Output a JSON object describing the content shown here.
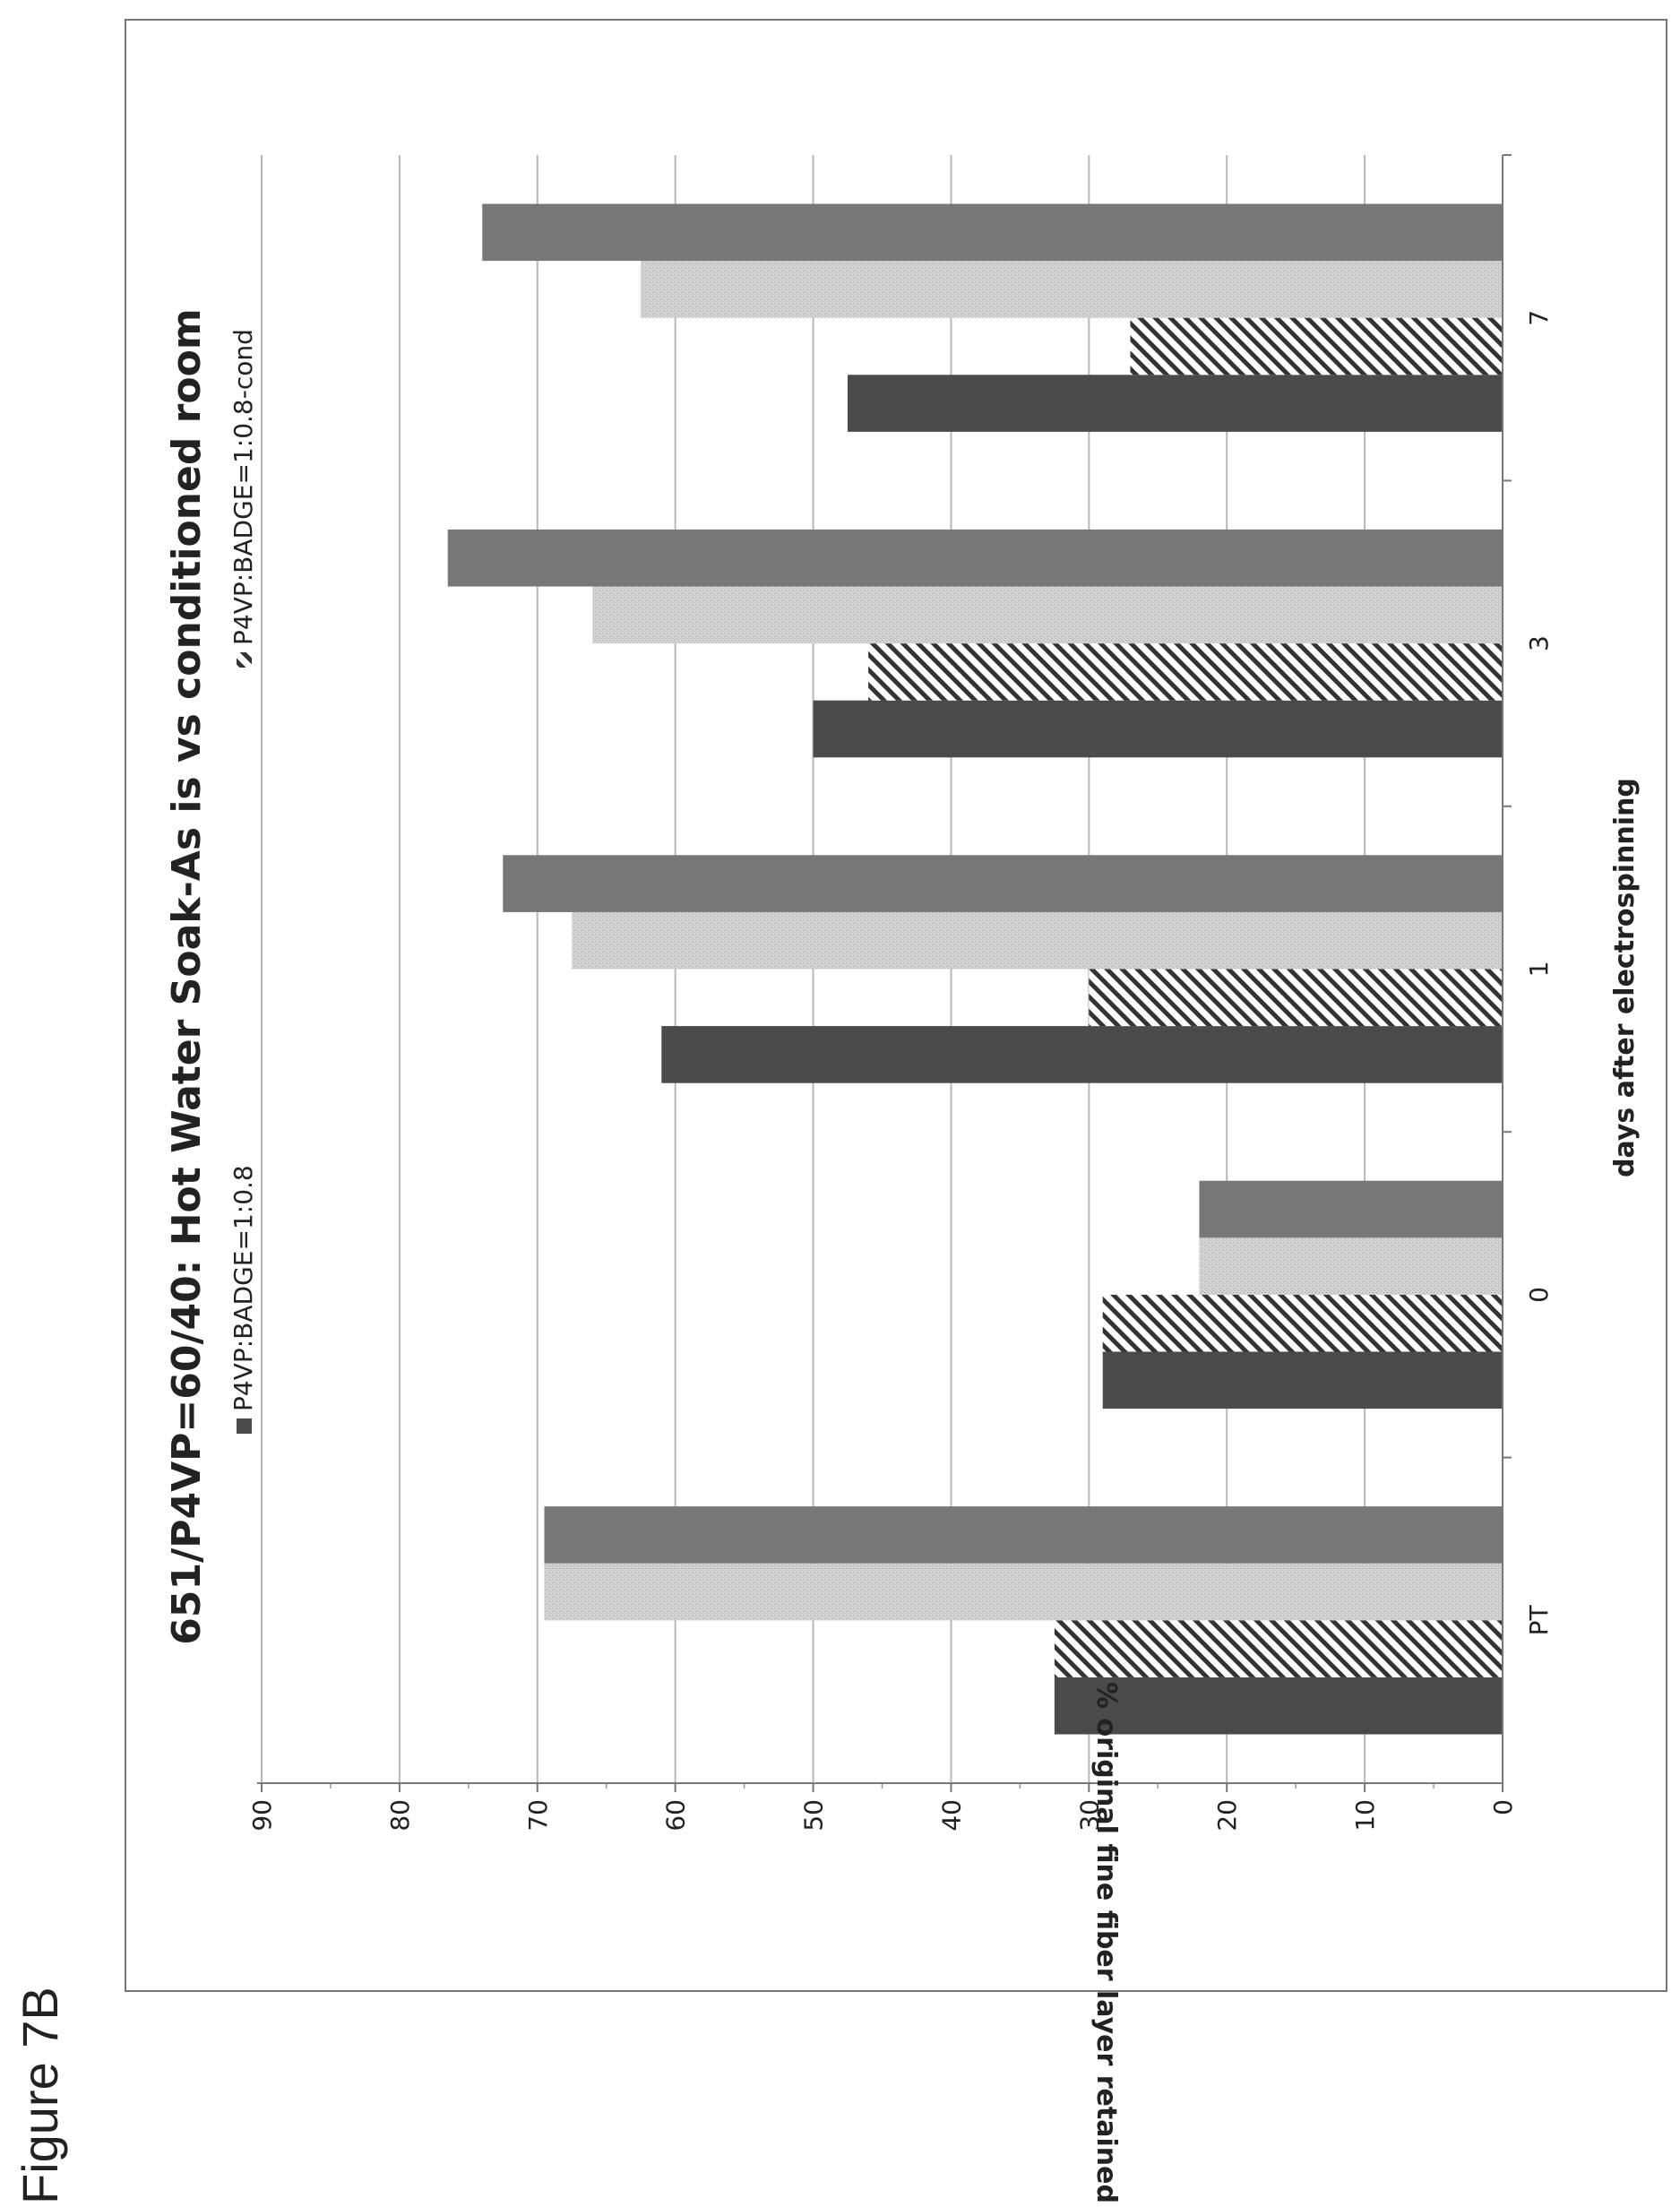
{
  "figure_label": "Figure 7B",
  "chart_data": {
    "type": "bar",
    "title": "651/P4VP=60/40: Hot Water Soak-As is vs conditioned room",
    "xlabel": "days after electrospinning",
    "ylabel": "% original fine fiber layer retained",
    "categories": [
      "PT",
      "0",
      "1",
      "3",
      "7"
    ],
    "ylim": [
      0,
      90
    ],
    "yticks": [
      0,
      10,
      20,
      30,
      40,
      50,
      60,
      70,
      80,
      90
    ],
    "grid": true,
    "legend_position": "top",
    "series": [
      {
        "name": "P4VP:BADGE=1:0.8",
        "values": [
          32.5,
          29,
          61,
          50,
          47.5
        ],
        "color": "#4a4a4a",
        "pattern": "solid"
      },
      {
        "name": "P4VP:BADGE=1:0.8-cond",
        "values": [
          32.5,
          29,
          30,
          46,
          27
        ],
        "color": "#333333",
        "pattern": "hatch"
      },
      {
        "name": "",
        "values": [
          69.5,
          22,
          67.5,
          66,
          62.5
        ],
        "color": "#d0d0d0",
        "pattern": "stipple"
      },
      {
        "name": "",
        "values": [
          69.5,
          22,
          72.5,
          76.5,
          74
        ],
        "color": "#777777",
        "pattern": "solid"
      }
    ]
  }
}
